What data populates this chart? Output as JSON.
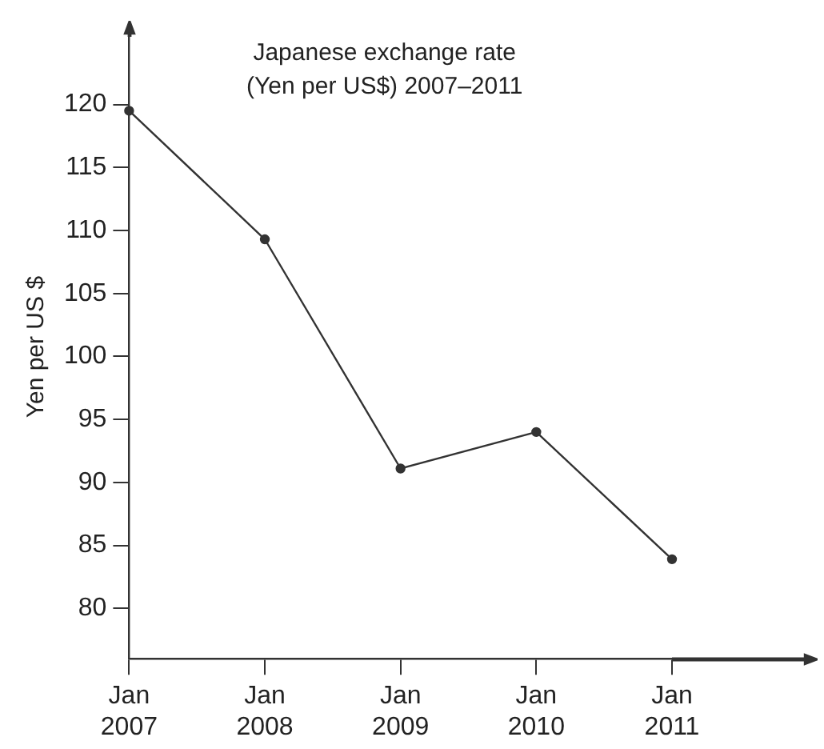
{
  "chart_data": {
    "type": "line",
    "title": "Japanese exchange rate\n(Yen per US$) 2007–2011",
    "ylabel": "Yen per US $",
    "categories": [
      "Jan 2007",
      "Jan 2008",
      "Jan 2009",
      "Jan 2010",
      "Jan 2011"
    ],
    "series": [
      {
        "color": "#333333",
        "values": [
          119.5,
          109.3,
          91.1,
          94.0,
          83.9
        ]
      }
    ],
    "ylim": [
      76,
      125.5
    ],
    "yticks": [
      80,
      85,
      90,
      95,
      100,
      105,
      110,
      115,
      120
    ],
    "grid": false,
    "legend": false,
    "marker": "circle",
    "line_style": "solid"
  }
}
